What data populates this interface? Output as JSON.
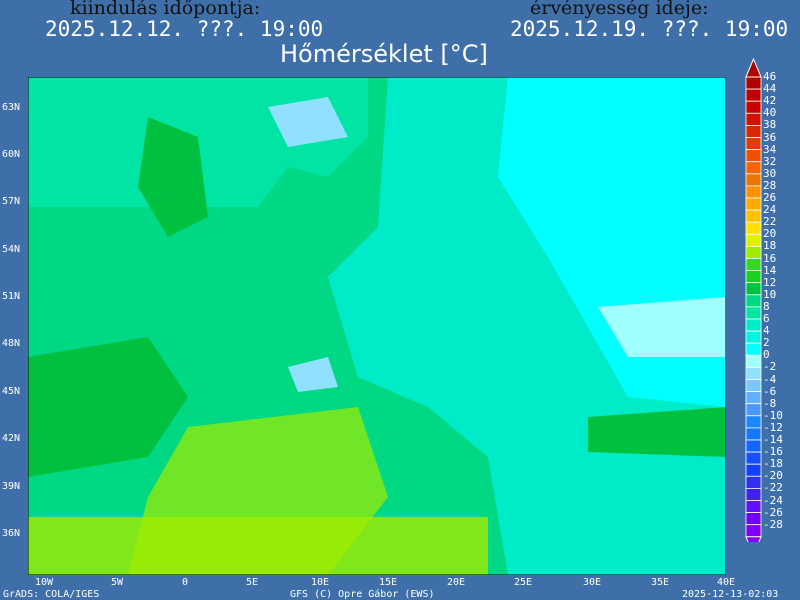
{
  "header": {
    "init_label": "kiindulás időpontja:",
    "init_time": "2025.12.12. ???. 19:00",
    "valid_label": "érvényesség ideje:",
    "valid_time": "2025.12.19. ???. 19:00",
    "title": "Hőmérséklet [°C]"
  },
  "map": {
    "region": "Europe",
    "variable": "2m temperature",
    "lat_labels": [
      "63N",
      "60N",
      "57N",
      "54N",
      "51N",
      "48N",
      "45N",
      "42N",
      "39N",
      "36N"
    ],
    "lon_labels": [
      "10W",
      "5W",
      "0",
      "5E",
      "10E",
      "15E",
      "20E",
      "25E",
      "30E",
      "35E",
      "40E"
    ]
  },
  "colorbar": {
    "levels": [
      "46",
      "44",
      "42",
      "40",
      "38",
      "36",
      "34",
      "32",
      "30",
      "28",
      "26",
      "24",
      "22",
      "20",
      "18",
      "16",
      "14",
      "12",
      "10",
      "8",
      "6",
      "4",
      "2",
      "0",
      "-2",
      "-4",
      "-6",
      "-8",
      "-10",
      "-12",
      "-14",
      "-16",
      "-18",
      "-20",
      "-22",
      "-24",
      "-26",
      "-28"
    ],
    "colors": [
      "#b00000",
      "#c00000",
      "#cc0000",
      "#d41000",
      "#dc2800",
      "#e43c00",
      "#f05000",
      "#fa6400",
      "#e87800",
      "#ff9000",
      "#ffaa00",
      "#ffc000",
      "#ffe000",
      "#e0f000",
      "#a0ec00",
      "#30d828",
      "#18d020",
      "#00c040",
      "#00d884",
      "#00e4a4",
      "#00ecc8",
      "#00f4e0",
      "#00ffff",
      "#a0ffff",
      "#90e0ff",
      "#78c8ff",
      "#60b0ff",
      "#4898ff",
      "#1888ff",
      "#1478ff",
      "#1464ff",
      "#1450ff",
      "#1440ff",
      "#3030f0",
      "#4020f8",
      "#6010ff",
      "#7000ff",
      "#8000ff"
    ]
  },
  "footer": {
    "left": "GrADS: COLA/IGES",
    "center": "GFS (C) Opre Gábor (EWS)",
    "right": "2025-12-13-02:03"
  }
}
